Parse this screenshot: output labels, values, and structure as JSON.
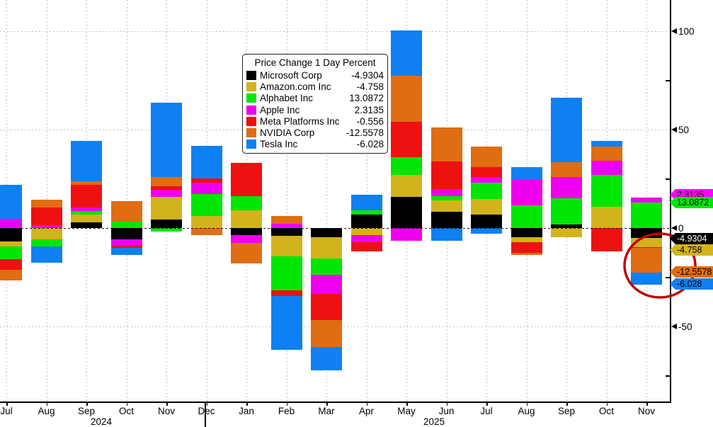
{
  "chart_data": {
    "type": "bar",
    "stacked": true,
    "title": "Price Change 1 Day Percent",
    "legend_position": "upper-left-inset",
    "grid": "dotted",
    "ylim_visible": [
      -89,
      116
    ],
    "yticks_major": [
      {
        "label": "100",
        "value": 100
      },
      {
        "label": "50",
        "value": 50
      },
      {
        "label": "0",
        "value": 0
      },
      {
        "label": "-50",
        "value": -50
      }
    ],
    "yticks_minor": [
      75,
      25,
      -25,
      -75
    ],
    "x_axis": {
      "months": [
        "Jul",
        "Aug",
        "Sep",
        "Oct",
        "Nov",
        "Dec",
        "Jan",
        "Feb",
        "Mar",
        "Apr",
        "May",
        "Jun",
        "Jul",
        "Aug",
        "Sep",
        "Oct",
        "Nov"
      ],
      "years": [
        {
          "label": "2024",
          "center_x": 143
        },
        {
          "label": "2025",
          "center_x": 613
        }
      ],
      "year_divider_x": 289
    },
    "series": [
      {
        "name": "Microsoft Corp",
        "color": "#000000",
        "last_value": "-4.9304",
        "values": [
          -6.9,
          0,
          2.9,
          -5.8,
          4.3,
          0,
          -3.6,
          -4.0,
          -4.7,
          6.8,
          15.9,
          8.1,
          6.9,
          -4.7,
          1.8,
          0,
          -4.9304
        ]
      },
      {
        "name": "Amazon.com Inc",
        "color": "#d2b31c",
        "last_value": "-4.758",
        "values": [
          -2.5,
          -5.8,
          4.0,
          0,
          11.6,
          6.0,
          9.0,
          -10.5,
          -10.8,
          -3.6,
          11.2,
          5.8,
          7.8,
          -2.5,
          -4.7,
          10.7,
          -4.758
        ]
      },
      {
        "name": "Alphabet Inc",
        "color": "#00e604",
        "last_value": "13.0872",
        "values": [
          -6.5,
          -3.6,
          1.8,
          3.2,
          -1.9,
          11.2,
          7.2,
          -17.3,
          -8.3,
          2.2,
          9.0,
          2.2,
          8.4,
          11.4,
          13.4,
          16.2,
          13.0872
        ]
      },
      {
        "name": "Apple Inc",
        "color": "#ee00ee",
        "last_value": "2.3135",
        "values": [
          4.7,
          1.4,
          1.8,
          -3.2,
          3.6,
          5.8,
          -4.0,
          2.0,
          -9.7,
          -3.6,
          -6.5,
          3.6,
          2.7,
          12.9,
          10.8,
          7.2,
          2.3135
        ]
      },
      {
        "name": "Meta Platforms Inc",
        "color": "#ee1111",
        "last_value": "-0.556",
        "values": [
          -5.4,
          9.0,
          11.6,
          -1.1,
          1.8,
          2.2,
          16.9,
          -2.9,
          -13.4,
          -4.7,
          17.7,
          14.1,
          5.2,
          -5.4,
          0,
          -11.9,
          -0.556
        ]
      },
      {
        "name": "NVIDIA Corp",
        "color": "#e06d12",
        "last_value": "-12.5578",
        "values": [
          -5.4,
          4.0,
          1.8,
          10.5,
          4.7,
          -3.6,
          -10.4,
          4.0,
          -13.7,
          0,
          23.5,
          17.3,
          10.2,
          -1.1,
          7.6,
          7.2,
          -12.5578
        ]
      },
      {
        "name": "Tesla Inc",
        "color": "#0e80f2",
        "last_value": "-6.028",
        "values": [
          17.3,
          -8.3,
          20.2,
          -3.6,
          37.5,
          16.5,
          0,
          -27.1,
          -11.6,
          7.9,
          23.1,
          -6.5,
          -3.0,
          6.6,
          32.5,
          2.9,
          -6.028
        ]
      }
    ],
    "value_badges": [
      {
        "text": "2.3135",
        "bg": "#ff00ff",
        "fg": "#000000",
        "y": 267
      },
      {
        "text": "13.0872",
        "bg": "#00e604",
        "fg": "#000000",
        "y": 278
      },
      {
        "text": "-4.9304",
        "bg": "#000000",
        "fg": "#ffffff",
        "y": 329
      },
      {
        "text": "-4.758",
        "bg": "#d2b31c",
        "fg": "#000000",
        "y": 345
      },
      {
        "text": "-12.5578",
        "bg": "#e06d12",
        "fg": "#000000",
        "y": 376
      },
      {
        "text": "-6.028",
        "bg": "#0e80f2",
        "fg": "#000000",
        "y": 393
      }
    ],
    "annotation": {
      "type": "ellipse",
      "color": "#c00000",
      "cx": 932,
      "cy": 375,
      "rx": 50,
      "ry": 45,
      "stroke_width": 3.5
    }
  }
}
